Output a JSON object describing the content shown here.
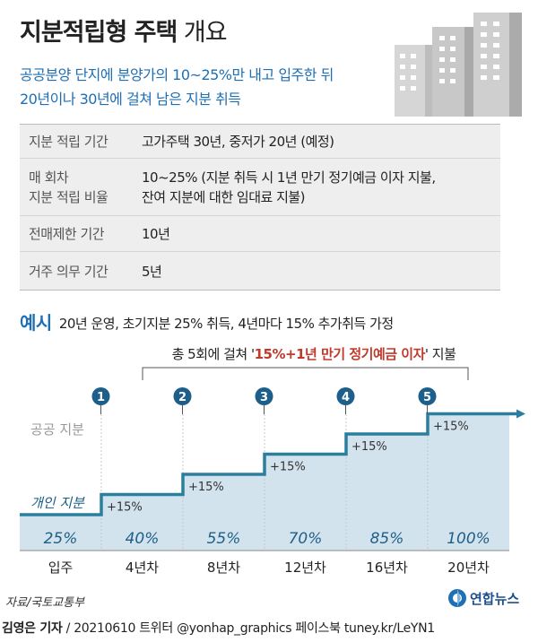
{
  "title": {
    "bold": "지분적립형 주택",
    "light": "개요"
  },
  "subtitle": {
    "line1": "공공분양 단지에 분양가의 10~25%만 내고 입주한 뒤",
    "line2": "20년이나 30년에 걸쳐 남은 지분 취득"
  },
  "info": [
    {
      "label": [
        "지분 적립 기간"
      ],
      "value": [
        "고가주택 30년, 중저가 20년 (예정)"
      ]
    },
    {
      "label": [
        "매 회차",
        "지분 적립 비율"
      ],
      "value": [
        "10~25% (지분 취득 시 1년 만기 정기예금 이자 지불,",
        "잔여 지분에 대한 임대료 지불)"
      ]
    },
    {
      "label": [
        "전매제한 기간"
      ],
      "value": [
        "10년"
      ]
    },
    {
      "label": [
        "거주 의무 기간"
      ],
      "value": [
        "5년"
      ]
    }
  ],
  "example": {
    "tag": "예시",
    "text": "20년 운영, 초기지분 25% 취득, 4년마다 15% 추가취득 가정"
  },
  "bracket": {
    "pre": "총 5회에 걸쳐 '",
    "highlight": "15%+1년 만기 정기예금 이자",
    "post": "' 지불"
  },
  "chart_data": {
    "type": "area",
    "public_label": "공공 지분",
    "private_label": "개인 지분",
    "categories": [
      "입주",
      "4년차",
      "8년차",
      "12년차",
      "16년차",
      "20년차"
    ],
    "values": [
      25,
      40,
      55,
      70,
      85,
      100
    ],
    "value_labels": [
      "25%",
      "40%",
      "55%",
      "70%",
      "85%",
      "100%"
    ],
    "step_labels": [
      "+15%",
      "+15%",
      "+15%",
      "+15%",
      "+15%"
    ],
    "rounds": [
      "1",
      "2",
      "3",
      "4",
      "5"
    ],
    "colors": {
      "fill": "#d3e3ee",
      "line": "#2a7f9d",
      "circle": "#1d5f8a",
      "value_text": "#1f5f86",
      "step_text": "#333333"
    }
  },
  "source": "자료/국토교통부",
  "logo": "연합뉴스",
  "footer": {
    "reporter": "김영은 기자",
    "rest": " / 20210610  트위터 @yonhap_graphics  페이스북 tuney.kr/LeYN1"
  }
}
